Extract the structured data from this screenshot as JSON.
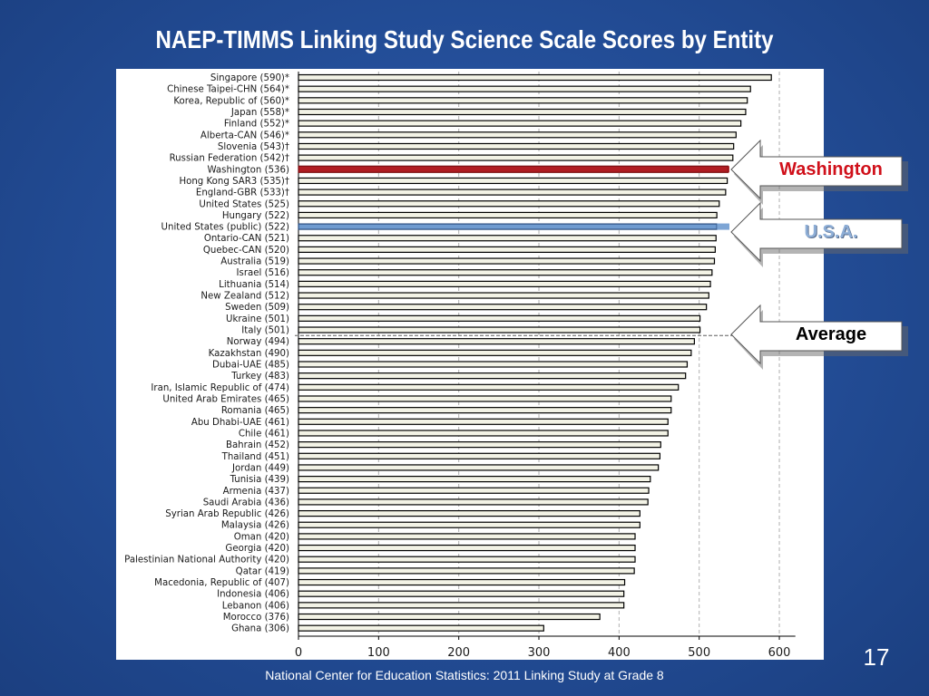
{
  "slide": {
    "title": "NAEP-TIMMS Linking Study Science Scale Scores by Entity",
    "page_number": "17",
    "source": "National Center for Education Statistics: 2011 Linking Study at Grade 8"
  },
  "callouts": {
    "washington": {
      "label": "Washington",
      "color": "#d0101a"
    },
    "usa": {
      "label": "U.S.A.",
      "color": "#8eaed6"
    },
    "average": {
      "label": "Average",
      "color": "#000000"
    }
  },
  "colors": {
    "bar_fill": "#f3f3e6",
    "bar_stroke": "#000000",
    "washington_bar": "#b01c22",
    "usa_bar": "#6f9bd0",
    "grid": "#b0b0b0"
  },
  "chart_data": {
    "type": "bar",
    "orientation": "horizontal",
    "xlim": [
      0,
      620
    ],
    "xticks": [
      0,
      100,
      200,
      300,
      400,
      500,
      600
    ],
    "grid": true,
    "average_after": "Italy (501)",
    "categories": [
      "Singapore (590)*",
      "Chinese Taipei-CHN (564)*",
      "Korea, Republic of (560)*",
      "Japan (558)*",
      "Finland (552)*",
      "Alberta-CAN (546)*",
      "Slovenia (543)†",
      "Russian Federation (542)†",
      "Washington (536)",
      "Hong Kong SAR3 (535)†",
      "England-GBR (533)†",
      "United States (525)",
      "Hungary (522)",
      "United States (public) (522)",
      "Ontario-CAN (521)",
      "Quebec-CAN (520)",
      "Australia (519)",
      "Israel (516)",
      "Lithuania (514)",
      "New Zealand (512)",
      "Sweden (509)",
      "Ukraine (501)",
      "Italy (501)",
      "Norway (494)",
      "Kazakhstan (490)",
      "Dubai-UAE (485)",
      "Turkey (483)",
      "Iran, Islamic Republic of (474)",
      "United Arab Emirates (465)",
      "Romania (465)",
      "Abu Dhabi-UAE (461)",
      "Chile (461)",
      "Bahrain (452)",
      "Thailand (451)",
      "Jordan (449)",
      "Tunisia (439)",
      "Armenia (437)",
      "Saudi Arabia (436)",
      "Syrian Arab Republic (426)",
      "Malaysia (426)",
      "Oman (420)",
      "Georgia (420)",
      "Palestinian National Authority (420)",
      "Qatar (419)",
      "Macedonia, Republic of (407)",
      "Indonesia (406)",
      "Lebanon (406)",
      "Morocco (376)",
      "Ghana (306)"
    ],
    "values": [
      590,
      564,
      560,
      558,
      552,
      546,
      543,
      542,
      536,
      535,
      533,
      525,
      522,
      522,
      521,
      520,
      519,
      516,
      514,
      512,
      509,
      501,
      501,
      494,
      490,
      485,
      483,
      474,
      465,
      465,
      461,
      461,
      452,
      451,
      449,
      439,
      437,
      436,
      426,
      426,
      420,
      420,
      420,
      419,
      407,
      406,
      406,
      376,
      306
    ],
    "highlights": {
      "Washington (536)": "washington",
      "United States (public) (522)": "usa"
    }
  }
}
